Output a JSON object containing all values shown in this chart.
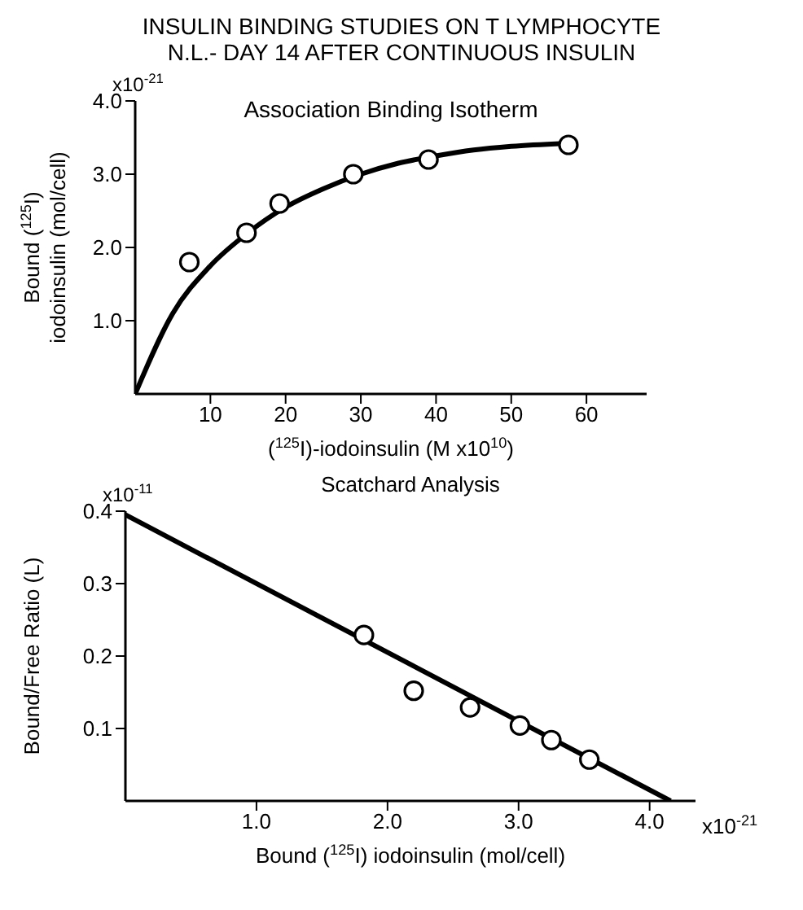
{
  "chart_data": [
    {
      "type": "scatter",
      "title": "INSULIN BINDING STUDIES ON T LYMPHOCYTE",
      "subtitle": "N.L.- DAY 14 AFTER CONTINUOUS INSULIN",
      "annotations": [
        "Association Binding Isotherm",
        "x10$^{-21}$"
      ],
      "xlabel": "($^{125}$I)-iodoinsulin (M x10$^{10}$)",
      "ylabel": "Bound ($^{125}$I) iodoinsulin (mol/cell)",
      "xlim": [
        0,
        68
      ],
      "xticks": [
        10,
        20,
        30,
        40,
        50,
        60
      ],
      "ylim": [
        0,
        4
      ],
      "yticks": [
        {
          "value": 1,
          "label": "1.0"
        },
        {
          "value": 2,
          "label": "2.0"
        },
        {
          "value": 3,
          "label": "3.0"
        },
        {
          "value": 4,
          "label": "4.0"
        }
      ],
      "marker": "circle",
      "series": [
        {
          "color": "#000000",
          "x": [
            7.2,
            14.8,
            19.2,
            29,
            39,
            57.6
          ],
          "values": [
            1.8,
            2.2,
            2.6,
            3.0,
            3.2,
            3.4
          ]
        },
        {
          "type": "line",
          "color": "#000000",
          "marker": "none",
          "line_style": "solid",
          "x": [
            0,
            5,
            10,
            15,
            20,
            25,
            30,
            35,
            40,
            45,
            50,
            57
          ],
          "values": [
            0,
            1.1,
            1.75,
            2.2,
            2.55,
            2.8,
            3.0,
            3.15,
            3.25,
            3.33,
            3.38,
            3.42
          ]
        }
      ]
    },
    {
      "type": "scatter",
      "title": "Scatchard Analysis",
      "annotations": [
        "x10$^{-11}$",
        "x10$^{-21}$"
      ],
      "xlabel": "Bound ($^{125}$I) iodoinsulin (mol/cell)",
      "ylabel": "Bound/Free Ratio (L)",
      "xlim": [
        0,
        4.35
      ],
      "xticks": [
        {
          "value": 1,
          "label": "1.0"
        },
        {
          "value": 2,
          "label": "2.0"
        },
        {
          "value": 3,
          "label": "3.0"
        },
        {
          "value": 4,
          "label": "4.0"
        }
      ],
      "ylim": [
        0,
        0.4
      ],
      "yticks": [
        0.1,
        0.2,
        0.3,
        0.4
      ],
      "marker": "circle",
      "series": [
        {
          "color": "#000000",
          "x": [
            1.82,
            2.2,
            2.63,
            3.01,
            3.25,
            3.54
          ],
          "values": [
            0.229,
            0.152,
            0.129,
            0.104,
            0.084,
            0.057
          ]
        },
        {
          "type": "line",
          "color": "#000000",
          "marker": "none",
          "line_style": "solid",
          "x": [
            0,
            4.16
          ],
          "values": [
            0.395,
            0
          ]
        }
      ]
    }
  ]
}
